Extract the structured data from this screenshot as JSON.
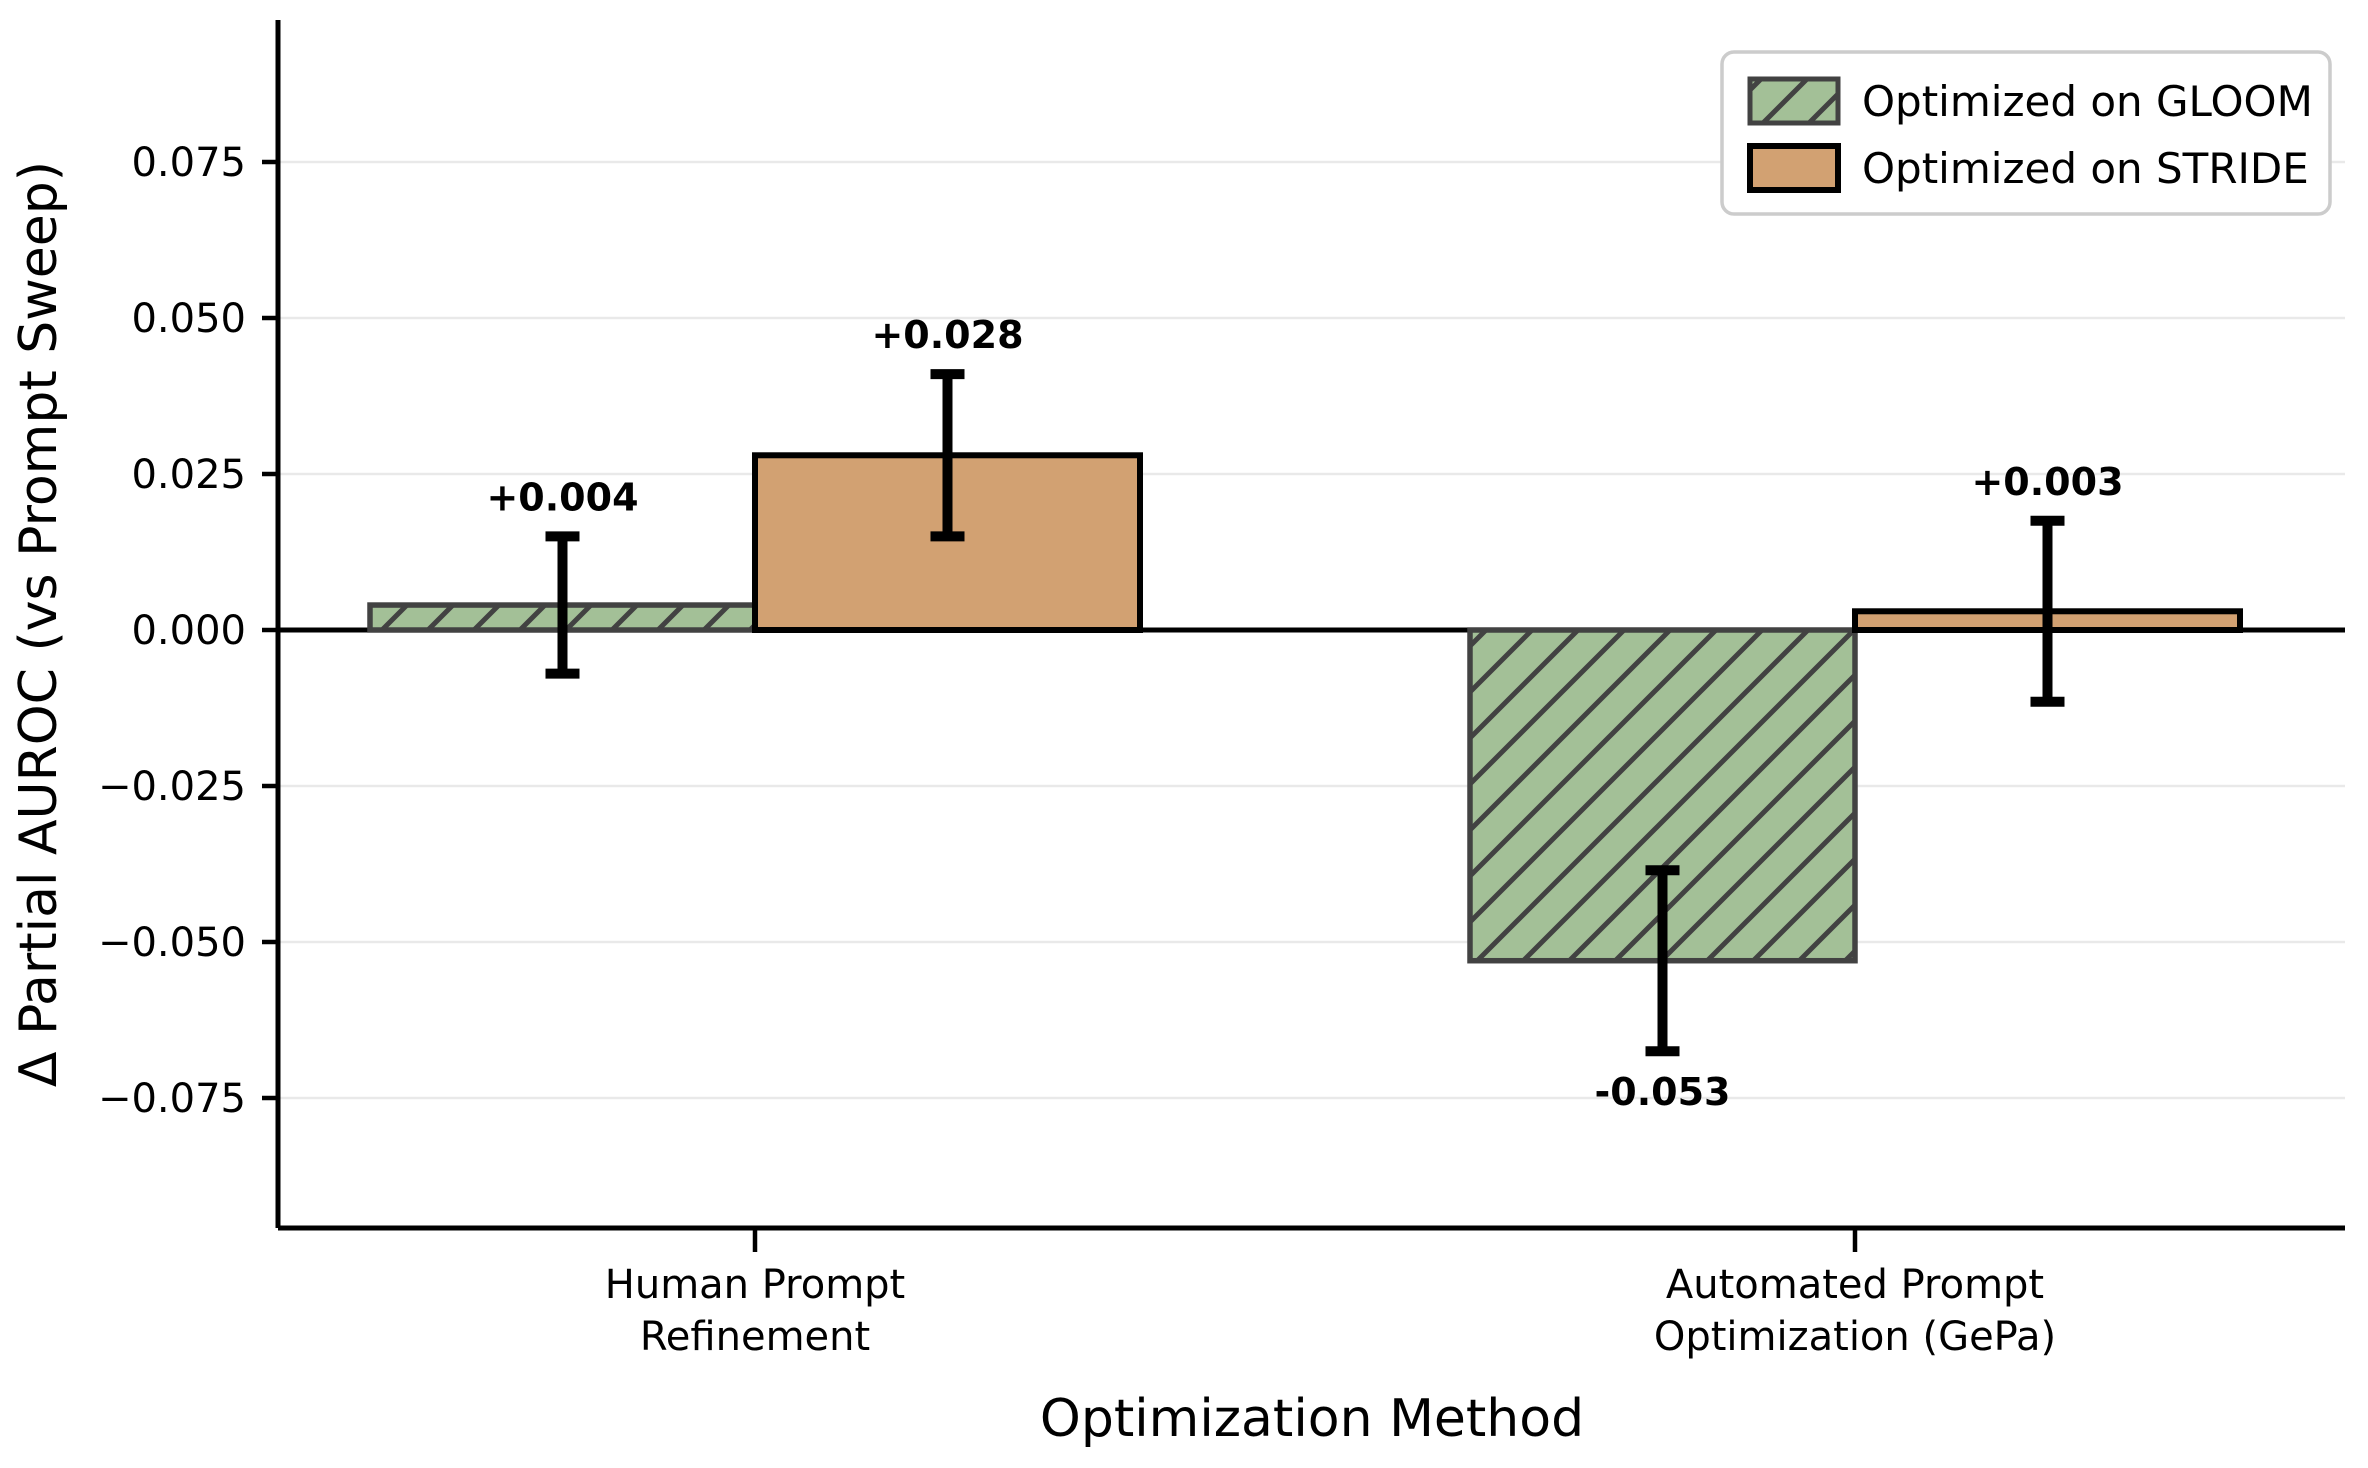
{
  "chart_data": {
    "type": "bar",
    "title": "",
    "xlabel": "Optimization Method",
    "ylabel": "Δ Partial AUROC (vs Prompt Sweep)",
    "categories": [
      {
        "label_lines": [
          "Human Prompt",
          "Refinement"
        ]
      },
      {
        "label_lines": [
          "Automated Prompt",
          "Optimization (GePa)"
        ]
      }
    ],
    "series": [
      {
        "name": "Optimized on GLOOM",
        "color": "#a3c097",
        "edge_color": "#424242",
        "hatch": "//",
        "label_color": "#2d5f2f",
        "values": [
          0.004,
          -0.053
        ],
        "errors": [
          0.011,
          0.0145
        ],
        "value_labels": [
          "+0.004",
          "-0.053"
        ]
      },
      {
        "name": "Optimized on STRIDE",
        "color": "#d2a172",
        "edge_color": "#000000",
        "hatch": "",
        "label_color": "#a26f38",
        "values": [
          0.028,
          0.003
        ],
        "errors": [
          0.013,
          0.0145
        ],
        "value_labels": [
          "+0.028",
          "+0.003"
        ]
      }
    ],
    "y_ticks": [
      0.075,
      0.05,
      0.025,
      0,
      -0.025,
      -0.05,
      -0.075
    ],
    "y_tick_labels": [
      "0.075",
      "0.050",
      "0.025",
      "0.000",
      "−0.025",
      "−0.050",
      "−0.075"
    ],
    "ylim": [
      -0.096,
      0.098
    ],
    "grid": true,
    "grid_color": "#e9e9e9",
    "zero_line": true,
    "axis_color": "#000000",
    "error_bar_color": "#000000",
    "legend": {
      "position": "upper right",
      "labels": [
        "Optimized on GLOOM",
        "Optimized on STRIDE"
      ]
    }
  }
}
